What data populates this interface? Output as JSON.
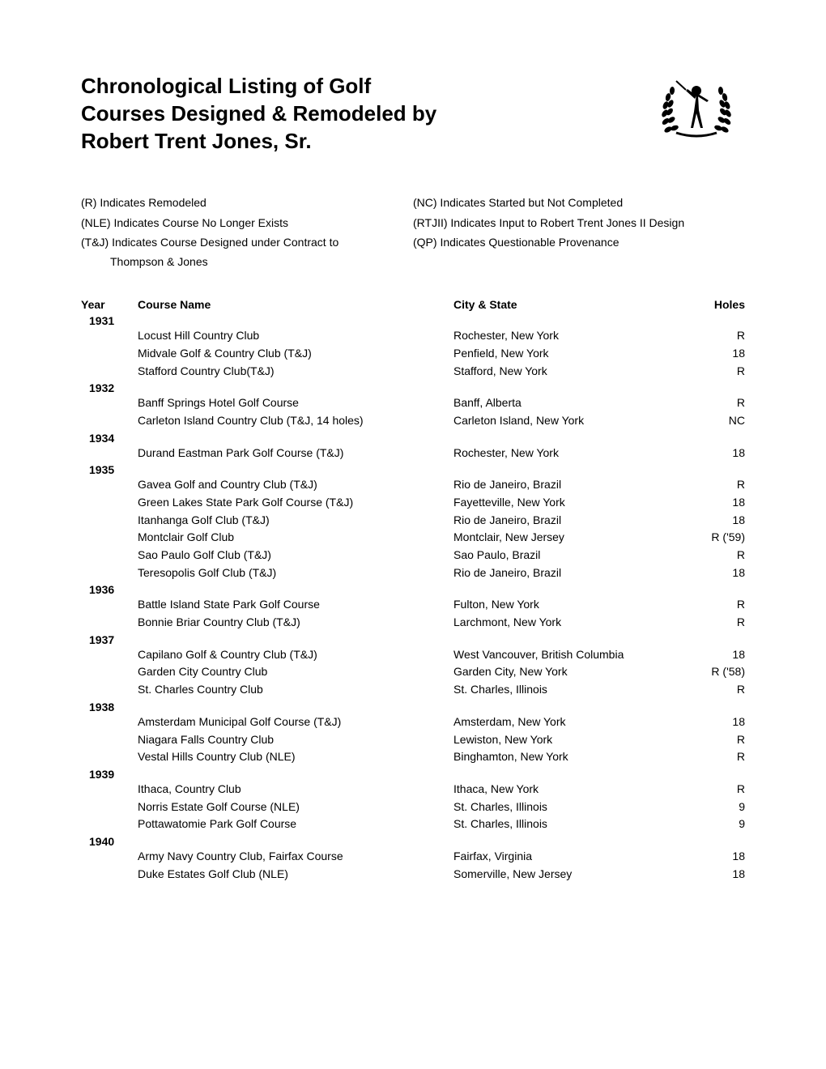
{
  "title_line1": "Chronological Listing of Golf",
  "title_line2": "Courses Designed & Remodeled by",
  "title_line3": "Robert Trent Jones, Sr.",
  "legend_left": [
    "(R) Indicates Remodeled",
    "(NLE) Indicates Course No Longer Exists",
    "(T&J) Indicates Course Designed under Contract to",
    "Thompson & Jones"
  ],
  "legend_right": [
    "(NC) Indicates Started but Not Completed",
    "(RTJII) Indicates Input to Robert Trent Jones II Design",
    "(QP) Indicates Questionable Provenance"
  ],
  "columns": {
    "year": "Year",
    "course": "Course Name",
    "city": "City & State",
    "holes": "Holes"
  },
  "years": [
    {
      "year": "1931",
      "rows": [
        {
          "course": "Locust Hill Country Club",
          "city": "Rochester, New York",
          "holes": "R"
        },
        {
          "course": "Midvale Golf & Country Club (T&J)",
          "city": "Penfield, New York",
          "holes": "18"
        },
        {
          "course": "Stafford Country Club(T&J)",
          "city": "Stafford, New York",
          "holes": "R"
        }
      ]
    },
    {
      "year": "1932",
      "rows": [
        {
          "course": "Banff Springs Hotel Golf Course",
          "city": "Banff, Alberta",
          "holes": "R"
        },
        {
          "course": "Carleton Island Country Club (T&J, 14 holes)",
          "city": "Carleton Island, New York",
          "holes": "NC"
        }
      ]
    },
    {
      "year": "1934",
      "rows": [
        {
          "course": "Durand Eastman Park Golf Course (T&J)",
          "city": "Rochester, New York",
          "holes": "18"
        }
      ]
    },
    {
      "year": "1935",
      "rows": [
        {
          "course": "Gavea Golf and Country Club (T&J)",
          "city": "Rio de Janeiro, Brazil",
          "holes": "R"
        },
        {
          "course": "Green Lakes State Park Golf Course (T&J)",
          "city": "Fayetteville, New York",
          "holes": "18"
        },
        {
          "course": "Itanhanga Golf Club (T&J)",
          "city": "Rio de Janeiro, Brazil",
          "holes": "18"
        },
        {
          "course": "Montclair Golf Club",
          "city": "Montclair, New Jersey",
          "holes": "R  ('59)"
        },
        {
          "course": "Sao Paulo Golf Club (T&J)",
          "city": "Sao Paulo, Brazil",
          "holes": "R"
        },
        {
          "course": "Teresopolis Golf Club (T&J)",
          "city": "Rio de Janeiro, Brazil",
          "holes": "18"
        }
      ]
    },
    {
      "year": "1936",
      "rows": [
        {
          "course": "Battle Island State Park Golf Course",
          "city": "Fulton, New York",
          "holes": "R"
        },
        {
          "course": "Bonnie Briar Country Club (T&J)",
          "city": "Larchmont, New York",
          "holes": "R"
        }
      ]
    },
    {
      "year": "1937",
      "rows": [
        {
          "course": "Capilano Golf & Country Club (T&J)",
          "city": "West Vancouver, British Columbia",
          "holes": "18"
        },
        {
          "course": "Garden City Country Club",
          "city": "Garden City, New York",
          "holes": "R  ('58)"
        },
        {
          "course": "St. Charles Country Club",
          "city": "St. Charles, Illinois",
          "holes": "R"
        }
      ]
    },
    {
      "year": "1938",
      "rows": [
        {
          "course": "Amsterdam Municipal Golf Course (T&J)",
          "city": "Amsterdam, New York",
          "holes": "18"
        },
        {
          "course": "Niagara Falls Country Club",
          "city": "Lewiston, New York",
          "holes": "R"
        },
        {
          "course": "Vestal Hills Country Club (NLE)",
          "city": "Binghamton, New York",
          "holes": "R"
        }
      ]
    },
    {
      "year": "1939",
      "rows": [
        {
          "course": "Ithaca, Country Club",
          "city": "Ithaca, New York",
          "holes": "R"
        },
        {
          "course": "Norris Estate Golf Course (NLE)",
          "city": "St. Charles, Illinois",
          "holes": "9"
        },
        {
          "course": "Pottawatomie Park Golf Course",
          "city": "St. Charles, Illinois",
          "holes": "9"
        }
      ]
    },
    {
      "year": "1940",
      "rows": [
        {
          "course": "Army Navy Country Club, Fairfax Course",
          "city": "Fairfax, Virginia",
          "holes": "18"
        },
        {
          "course": "Duke Estates Golf Club (NLE)",
          "city": "Somerville, New Jersey",
          "holes": "18"
        }
      ]
    }
  ]
}
